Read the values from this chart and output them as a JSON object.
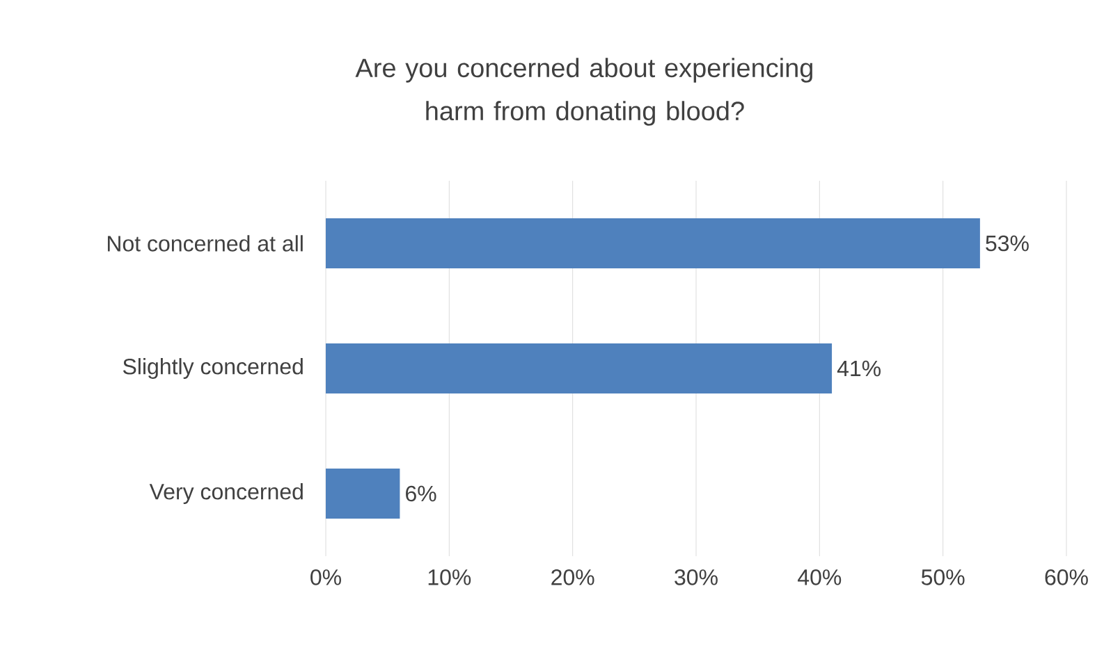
{
  "chart_data": {
    "type": "bar",
    "orientation": "horizontal",
    "title": "Are you concerned about experiencing harm from donating blood?",
    "categories": [
      "Not concerned at all",
      "Slightly concerned",
      "Very concerned"
    ],
    "values": [
      53,
      41,
      6
    ],
    "value_labels": [
      "53%",
      "41%",
      "6%"
    ],
    "color": "#4f81bd",
    "xlim": [
      0,
      60
    ],
    "xticks": [
      {
        "value": 0,
        "label": "0%"
      },
      {
        "value": 10,
        "label": "10%"
      },
      {
        "value": 20,
        "label": "20%"
      },
      {
        "value": 30,
        "label": "30%"
      },
      {
        "value": 40,
        "label": "40%"
      },
      {
        "value": 50,
        "label": "50%"
      },
      {
        "value": 60,
        "label": "60%"
      }
    ],
    "grid": "x"
  }
}
